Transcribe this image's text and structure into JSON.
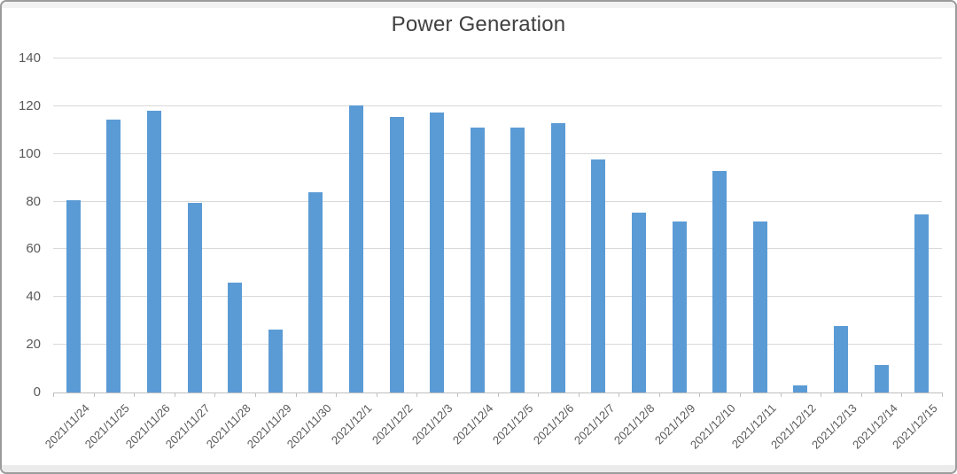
{
  "chart_data": {
    "type": "bar",
    "title": "Power Generation",
    "categories": [
      "2021/11/24",
      "2021/11/25",
      "2021/11/26",
      "2021/11/27",
      "2021/11/28",
      "2021/11/29",
      "2021/11/30",
      "2021/12/1",
      "2021/12/2",
      "2021/12/3",
      "2021/12/4",
      "2021/12/5",
      "2021/12/6",
      "2021/12/7",
      "2021/12/8",
      "2021/12/9",
      "2021/12/10",
      "2021/12/11",
      "2021/12/12",
      "2021/12/13",
      "2021/12/14",
      "2021/12/15"
    ],
    "values": [
      80.5,
      114.5,
      118,
      79.5,
      46,
      26.5,
      84,
      120.5,
      115.5,
      117.5,
      111,
      111,
      113,
      97.5,
      75.5,
      71.5,
      93,
      71.5,
      3,
      28,
      11.5,
      74.5
    ],
    "xlabel": "",
    "ylabel": "",
    "ylim": [
      0,
      140
    ],
    "yticks": [
      0,
      20,
      40,
      60,
      80,
      100,
      120,
      140
    ],
    "grid": true,
    "legend_position": "none",
    "colors": {
      "bar": "#5b9bd5",
      "gridline": "#d9d9d9",
      "axis_line": "#bfbfbf",
      "tick_label": "#595959",
      "title": "#404040",
      "frame_border": "#9b9b9b"
    }
  }
}
